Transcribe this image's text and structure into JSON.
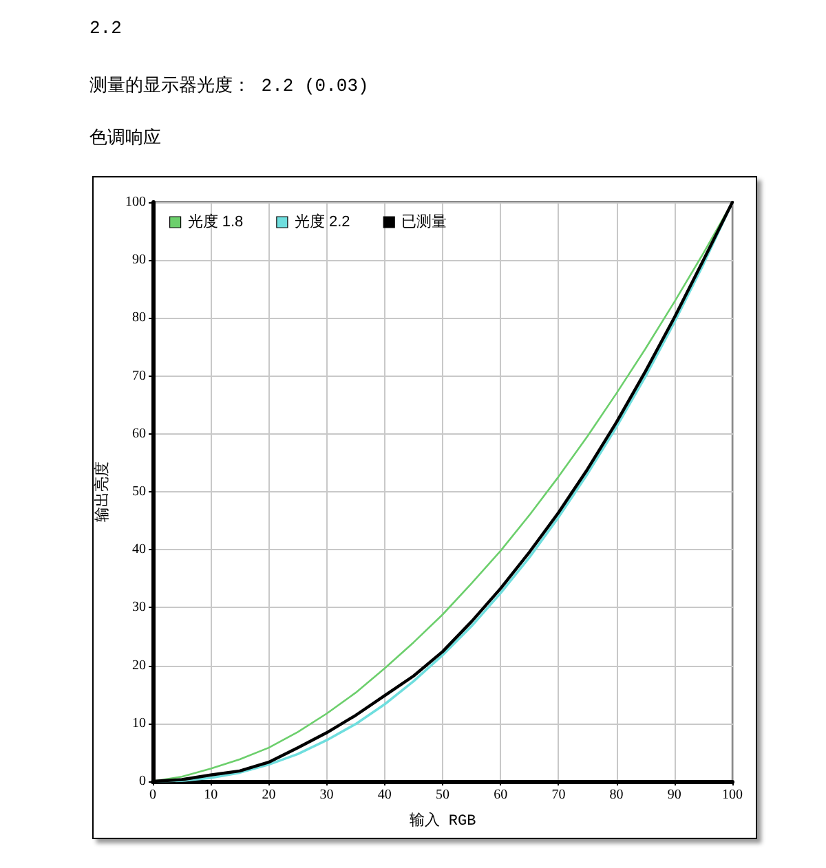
{
  "chart_data": {
    "type": "line",
    "title": "色调响应",
    "annotations": [
      "2.2",
      "测量的显示器光度： 2.2 (0.03)"
    ],
    "xlabel": "输入 RGB",
    "ylabel": "输出亮度",
    "x": [
      0,
      5,
      10,
      15,
      20,
      25,
      30,
      35,
      40,
      45,
      50,
      55,
      60,
      65,
      70,
      75,
      80,
      85,
      90,
      95,
      100
    ],
    "series": [
      {
        "name": "光度 1.8",
        "color": "#6ccf6c",
        "values": [
          0,
          0.8,
          2.2,
          3.8,
          5.8,
          8.5,
          11.7,
          15.3,
          19.5,
          24,
          28.8,
          34.2,
          39.8,
          46,
          52.6,
          59.6,
          67,
          74.7,
          82.8,
          91.2,
          100
        ]
      },
      {
        "name": "光度 2.2",
        "color": "#6fdede",
        "values": [
          0,
          0.1,
          0.6,
          1.5,
          2.9,
          4.7,
          7.1,
          9.9,
          13.3,
          17.3,
          21.8,
          26.8,
          32.5,
          38.7,
          45.6,
          53.1,
          61.2,
          69.9,
          79.3,
          89.3,
          100
        ]
      },
      {
        "name": "已测量",
        "color": "#000000",
        "values": [
          0,
          0.3,
          1.1,
          1.8,
          3.3,
          5.8,
          8.4,
          11.4,
          14.8,
          18.2,
          22.4,
          27.6,
          33.3,
          39.6,
          46.4,
          53.9,
          62,
          70.8,
          80.1,
          90,
          100
        ]
      }
    ],
    "xlim": [
      0,
      100
    ],
    "ylim": [
      0,
      100
    ],
    "xticks": [
      0,
      10,
      20,
      30,
      40,
      50,
      60,
      70,
      80,
      90,
      100
    ],
    "yticks": [
      0,
      10,
      20,
      30,
      40,
      50,
      60,
      70,
      80,
      90,
      100
    ],
    "grid": true,
    "legend": "top left",
    "marker": "none",
    "line_style": "solid"
  }
}
